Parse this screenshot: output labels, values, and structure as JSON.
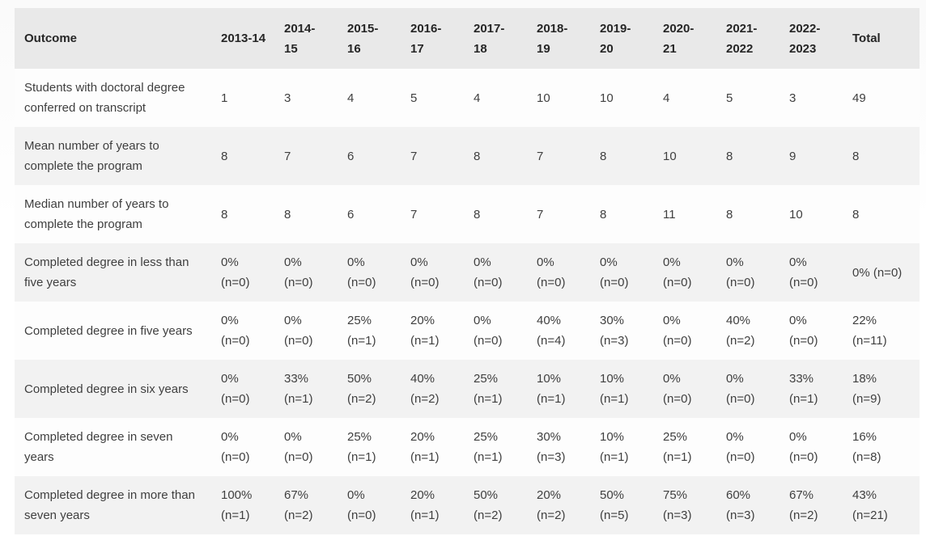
{
  "colors": {
    "header_bg": "#e9e9e9",
    "stripe_bg": "#f2f2f2",
    "row_bg": "#fdfdfd",
    "header_text": "#262626",
    "body_text": "#3f3f3f"
  },
  "table": {
    "headers": [
      "Outcome",
      "2013-14",
      "2014-\n15",
      "2015-\n16",
      "2016-\n17",
      "2017-\n18",
      "2018-\n19",
      "2019-\n20",
      "2020-\n21",
      "2021-\n2022",
      "2022-\n2023",
      "Total"
    ],
    "rows": [
      {
        "label": "Students with doctoral degree\nconferred on transcript",
        "values": [
          "1",
          "3",
          "4",
          "5",
          "4",
          "10",
          "10",
          "4",
          "5",
          "3",
          "49"
        ]
      },
      {
        "label": "Mean number of years to\ncomplete the program",
        "values": [
          "8",
          "7",
          "6",
          "7",
          "8",
          "7",
          "8",
          "10",
          "8",
          "9",
          "8"
        ]
      },
      {
        "label": "Median number of years to\ncomplete the program",
        "values": [
          "8",
          "8",
          "6",
          "7",
          "8",
          "7",
          "8",
          "11",
          "8",
          "10",
          "8"
        ]
      },
      {
        "label": "Completed degree in less than\nfive years",
        "values": [
          "0%\n(n=0)",
          "0%\n(n=0)",
          "0%\n(n=0)",
          "0%\n(n=0)",
          "0%\n(n=0)",
          "0%\n(n=0)",
          "0%\n(n=0)",
          "0%\n(n=0)",
          "0%\n(n=0)",
          "0%\n(n=0)",
          "0% (n=0)"
        ]
      },
      {
        "label": "Completed degree in five years",
        "values": [
          "0%\n(n=0)",
          "0%\n(n=0)",
          "25%\n(n=1)",
          "20%\n(n=1)",
          "0%\n(n=0)",
          "40%\n(n=4)",
          "30%\n(n=3)",
          "0%\n(n=0)",
          "40%\n(n=2)",
          "0%\n(n=0)",
          "22%\n(n=11)"
        ]
      },
      {
        "label": "Completed degree in six years",
        "values": [
          "0%\n(n=0)",
          "33%\n(n=1)",
          "50%\n(n=2)",
          "40%\n(n=2)",
          "25%\n(n=1)",
          "10%\n(n=1)",
          "10%\n(n=1)",
          "0%\n(n=0)",
          "0%\n(n=0)",
          "33%\n(n=1)",
          "18%\n(n=9)"
        ]
      },
      {
        "label": "Completed degree in seven\nyears",
        "values": [
          "0%\n(n=0)",
          "0%\n(n=0)",
          "25%\n(n=1)",
          "20%\n(n=1)",
          "25%\n(n=1)",
          "30%\n(n=3)",
          "10%\n(n=1)",
          "25%\n(n=1)",
          "0%\n(n=0)",
          "0%\n(n=0)",
          "16%\n(n=8)"
        ]
      },
      {
        "label": "Completed degree in more than\nseven years",
        "values": [
          "100%\n(n=1)",
          "67%\n(n=2)",
          "0%\n(n=0)",
          "20%\n(n=1)",
          "50%\n(n=2)",
          "20%\n(n=2)",
          "50%\n(n=5)",
          "75%\n(n=3)",
          "60%\n(n=3)",
          "67%\n(n=2)",
          "43%\n(n=21)"
        ]
      }
    ]
  }
}
